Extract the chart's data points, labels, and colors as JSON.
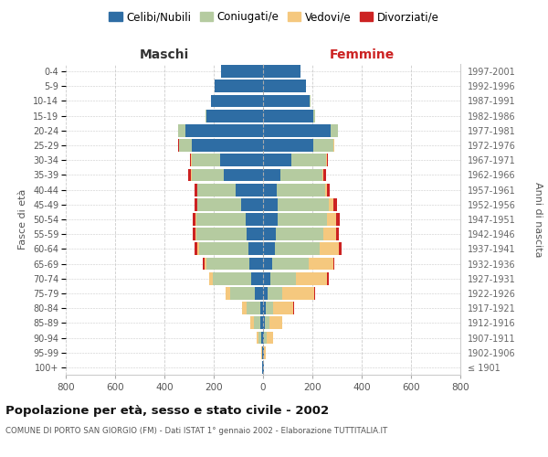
{
  "age_groups": [
    "100+",
    "95-99",
    "90-94",
    "85-89",
    "80-84",
    "75-79",
    "70-74",
    "65-69",
    "60-64",
    "55-59",
    "50-54",
    "45-49",
    "40-44",
    "35-39",
    "30-34",
    "25-29",
    "20-24",
    "15-19",
    "10-14",
    "5-9",
    "0-4"
  ],
  "birth_years": [
    "≤ 1901",
    "1902-1906",
    "1907-1911",
    "1912-1916",
    "1917-1921",
    "1922-1926",
    "1927-1931",
    "1932-1936",
    "1937-1941",
    "1942-1946",
    "1947-1951",
    "1952-1956",
    "1957-1961",
    "1962-1966",
    "1967-1971",
    "1972-1976",
    "1977-1981",
    "1982-1986",
    "1987-1991",
    "1992-1996",
    "1997-2001"
  ],
  "maschi": {
    "celibi": [
      2,
      3,
      6,
      10,
      12,
      35,
      50,
      55,
      60,
      65,
      70,
      90,
      110,
      160,
      175,
      290,
      315,
      230,
      210,
      195,
      172
    ],
    "coniugati": [
      0,
      2,
      12,
      28,
      55,
      100,
      155,
      175,
      200,
      205,
      200,
      175,
      155,
      130,
      115,
      50,
      30,
      5,
      2,
      0,
      0
    ],
    "vedovi": [
      0,
      1,
      8,
      15,
      18,
      18,
      15,
      8,
      5,
      3,
      3,
      2,
      2,
      2,
      2,
      1,
      0,
      0,
      0,
      0,
      0
    ],
    "divorziati": [
      0,
      0,
      0,
      0,
      0,
      0,
      0,
      5,
      12,
      12,
      12,
      12,
      10,
      10,
      5,
      2,
      0,
      0,
      0,
      0,
      0
    ]
  },
  "femmine": {
    "nubili": [
      2,
      3,
      5,
      8,
      10,
      18,
      28,
      38,
      48,
      52,
      58,
      58,
      55,
      70,
      115,
      205,
      275,
      205,
      190,
      175,
      150
    ],
    "coniugate": [
      0,
      2,
      8,
      18,
      32,
      60,
      105,
      148,
      182,
      192,
      202,
      208,
      198,
      172,
      142,
      82,
      28,
      5,
      2,
      0,
      0
    ],
    "vedove": [
      0,
      5,
      28,
      52,
      82,
      128,
      128,
      98,
      78,
      52,
      38,
      18,
      8,
      4,
      2,
      1,
      0,
      0,
      0,
      0,
      0
    ],
    "divorziate": [
      0,
      0,
      0,
      0,
      2,
      5,
      5,
      5,
      12,
      10,
      12,
      15,
      10,
      10,
      5,
      2,
      0,
      0,
      0,
      0,
      0
    ]
  },
  "colors": {
    "celibi": "#2e6da4",
    "coniugati": "#b5cba0",
    "vedovi": "#f5c87e",
    "divorziati": "#cc2222"
  },
  "xlim": 800,
  "title": "Popolazione per età, sesso e stato civile - 2002",
  "subtitle": "COMUNE DI PORTO SAN GIORGIO (FM) - Dati ISTAT 1° gennaio 2002 - Elaborazione TUTTITALIA.IT",
  "xlabel_left": "Maschi",
  "xlabel_right": "Femmine",
  "ylabel_left": "Fasce di età",
  "ylabel_right": "Anni di nascita",
  "legend_labels": [
    "Celibi/Nubili",
    "Coniugati/e",
    "Vedovi/e",
    "Divorziati/e"
  ],
  "xticks": [
    -800,
    -600,
    -400,
    -200,
    0,
    200,
    400,
    600,
    800
  ],
  "xtick_labels": [
    "800",
    "600",
    "400",
    "200",
    "0",
    "200",
    "400",
    "600",
    "800"
  ],
  "background_color": "#ffffff",
  "grid_color": "#cccccc"
}
